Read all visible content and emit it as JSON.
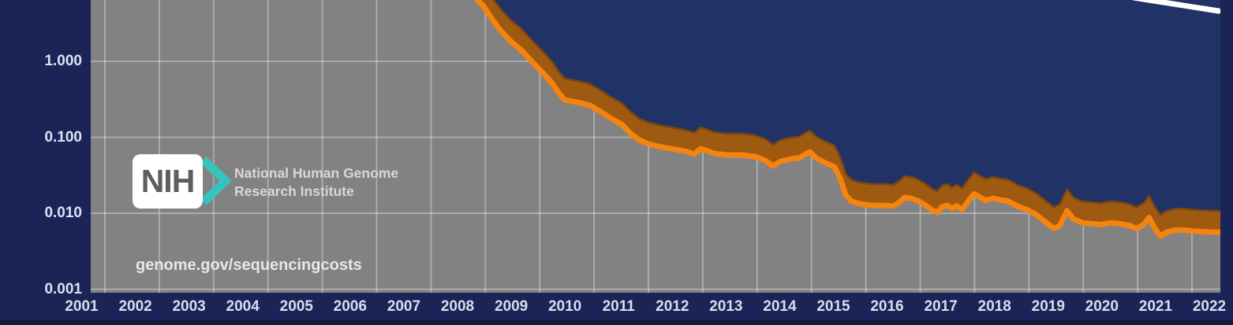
{
  "chart_data": {
    "type": "area",
    "title": "",
    "xlabel": "",
    "ylabel": "",
    "grid": "on",
    "x_axis": {
      "tick_labels": [
        "2001",
        "2002",
        "2003",
        "2004",
        "2005",
        "2006",
        "2007",
        "2008",
        "2009",
        "2010",
        "2011",
        "2012",
        "2013",
        "2014",
        "2015",
        "2016",
        "2017",
        "2018",
        "2019",
        "2020",
        "2021",
        "2022"
      ],
      "range": [
        2001,
        2022.6
      ]
    },
    "y_axis": {
      "scale": "log",
      "tick_labels": [
        "1.000",
        "0.100",
        "0.010",
        "0.001"
      ],
      "tick_values": [
        1,
        0.1,
        0.01,
        0.001
      ],
      "visible_top_value": 6.4,
      "visible_bottom_value": 0.00089
    },
    "series": [
      {
        "name": "sequencing-cost-curve",
        "type": "ribbon-line",
        "points": [
          [
            2008.85,
            6.43
          ],
          [
            2008.97,
            5.31
          ],
          [
            2009.1,
            3.8
          ],
          [
            2009.27,
            2.6
          ],
          [
            2009.47,
            1.82
          ],
          [
            2009.65,
            1.43
          ],
          [
            2009.85,
            1.0
          ],
          [
            2010.05,
            0.716
          ],
          [
            2010.23,
            0.513
          ],
          [
            2010.37,
            0.367
          ],
          [
            2010.46,
            0.311
          ],
          [
            2010.61,
            0.296
          ],
          [
            2010.77,
            0.282
          ],
          [
            2010.93,
            0.262
          ],
          [
            2011.1,
            0.222
          ],
          [
            2011.3,
            0.179
          ],
          [
            2011.51,
            0.148
          ],
          [
            2011.68,
            0.111
          ],
          [
            2011.83,
            0.0923
          ],
          [
            2012.01,
            0.0815
          ],
          [
            2012.26,
            0.0741
          ],
          [
            2012.51,
            0.069
          ],
          [
            2012.73,
            0.0642
          ],
          [
            2012.84,
            0.0599
          ],
          [
            2012.96,
            0.0705
          ],
          [
            2013.07,
            0.0672
          ],
          [
            2013.2,
            0.0613
          ],
          [
            2013.44,
            0.0585
          ],
          [
            2013.71,
            0.0585
          ],
          [
            2013.96,
            0.0557
          ],
          [
            2014.15,
            0.0496
          ],
          [
            2014.29,
            0.0419
          ],
          [
            2014.44,
            0.0485
          ],
          [
            2014.63,
            0.052
          ],
          [
            2014.77,
            0.0532
          ],
          [
            2014.89,
            0.0599
          ],
          [
            2014.97,
            0.0642
          ],
          [
            2015.09,
            0.0532
          ],
          [
            2015.25,
            0.0462
          ],
          [
            2015.42,
            0.0409
          ],
          [
            2015.53,
            0.0285
          ],
          [
            2015.63,
            0.0173
          ],
          [
            2015.74,
            0.0143
          ],
          [
            2015.89,
            0.0133
          ],
          [
            2016.11,
            0.0127
          ],
          [
            2016.32,
            0.0127
          ],
          [
            2016.5,
            0.0124
          ],
          [
            2016.61,
            0.0137
          ],
          [
            2016.71,
            0.0161
          ],
          [
            2016.83,
            0.0157
          ],
          [
            2016.95,
            0.0147
          ],
          [
            2017.08,
            0.013
          ],
          [
            2017.22,
            0.011
          ],
          [
            2017.31,
            0.0102
          ],
          [
            2017.4,
            0.0121
          ],
          [
            2017.5,
            0.0127
          ],
          [
            2017.58,
            0.0115
          ],
          [
            2017.67,
            0.0125
          ],
          [
            2017.77,
            0.0112
          ],
          [
            2017.89,
            0.0146
          ],
          [
            2017.99,
            0.018
          ],
          [
            2018.11,
            0.0161
          ],
          [
            2018.21,
            0.0147
          ],
          [
            2018.34,
            0.0157
          ],
          [
            2018.47,
            0.015
          ],
          [
            2018.61,
            0.0145
          ],
          [
            2018.79,
            0.0124
          ],
          [
            2018.96,
            0.0112
          ],
          [
            2019.14,
            0.0095
          ],
          [
            2019.31,
            0.0076
          ],
          [
            2019.46,
            0.0063
          ],
          [
            2019.57,
            0.0069
          ],
          [
            2019.7,
            0.0108
          ],
          [
            2019.82,
            0.0084
          ],
          [
            2019.98,
            0.0075
          ],
          [
            2020.15,
            0.0073
          ],
          [
            2020.33,
            0.0071
          ],
          [
            2020.5,
            0.0075
          ],
          [
            2020.68,
            0.0073
          ],
          [
            2020.85,
            0.0069
          ],
          [
            2020.98,
            0.0063
          ],
          [
            2021.11,
            0.0071
          ],
          [
            2021.21,
            0.0088
          ],
          [
            2021.31,
            0.0064
          ],
          [
            2021.42,
            0.005
          ],
          [
            2021.53,
            0.0056
          ],
          [
            2021.69,
            0.006
          ],
          [
            2021.86,
            0.006
          ],
          [
            2022.04,
            0.0058
          ],
          [
            2022.27,
            0.0057
          ],
          [
            2022.53,
            0.0056
          ]
        ]
      },
      {
        "name": "moores-law-line",
        "type": "line",
        "points": [
          [
            2020.93,
            6.9
          ],
          [
            2022.49,
            4.6
          ]
        ]
      }
    ],
    "legend": "none"
  },
  "branding": {
    "nih_acronym": "NIH",
    "institute_line1": "National Human Genome",
    "institute_line2": "Research Institute",
    "source_url": "genome.gov/sequencingcosts"
  },
  "colors": {
    "background": "#1a2456",
    "area_above_curve": "#213266",
    "plot_area_gray": "#828282",
    "gridline": "rgba(255,255,255,0.33)",
    "curve_orange": "#f5830f",
    "curve_band": "#9d5a10",
    "curve_band_edge": "#7f470c",
    "moore_line": "#ffffff",
    "axis_text": "#dde2f2",
    "nih_teal": "#35c3bd",
    "nih_letters_gray": "#5c5e60",
    "bottom_strip": "#111b3e"
  }
}
